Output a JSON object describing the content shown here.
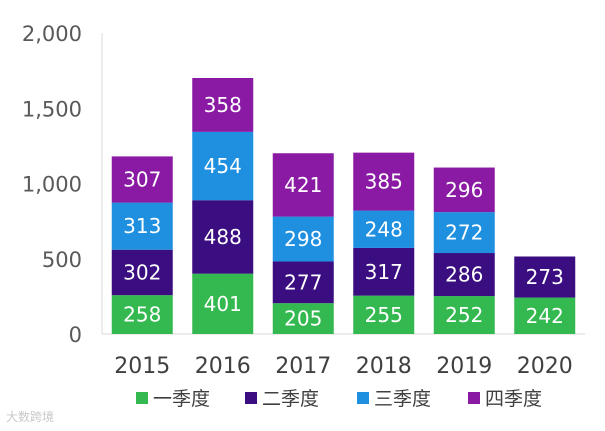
{
  "chart_data": {
    "type": "bar",
    "stacked": true,
    "categories": [
      "2015",
      "2016",
      "2017",
      "2018",
      "2019",
      "2020"
    ],
    "series": [
      {
        "name": "一季度",
        "color": "#33b94f",
        "values": [
          258,
          401,
          205,
          255,
          252,
          242
        ]
      },
      {
        "name": "二季度",
        "color": "#3a0d80",
        "values": [
          302,
          488,
          277,
          317,
          286,
          273
        ]
      },
      {
        "name": "三季度",
        "color": "#1f8fe0",
        "values": [
          313,
          454,
          298,
          248,
          272,
          null
        ]
      },
      {
        "name": "四季度",
        "color": "#8a1aa3",
        "values": [
          307,
          358,
          421,
          385,
          296,
          null
        ]
      }
    ],
    "y_ticks": [
      "0",
      "500",
      "1,000",
      "1,500",
      "2,000"
    ],
    "ylim": [
      0,
      2000
    ],
    "grid": false,
    "legend_position": "bottom"
  },
  "watermark": "大数跨境"
}
